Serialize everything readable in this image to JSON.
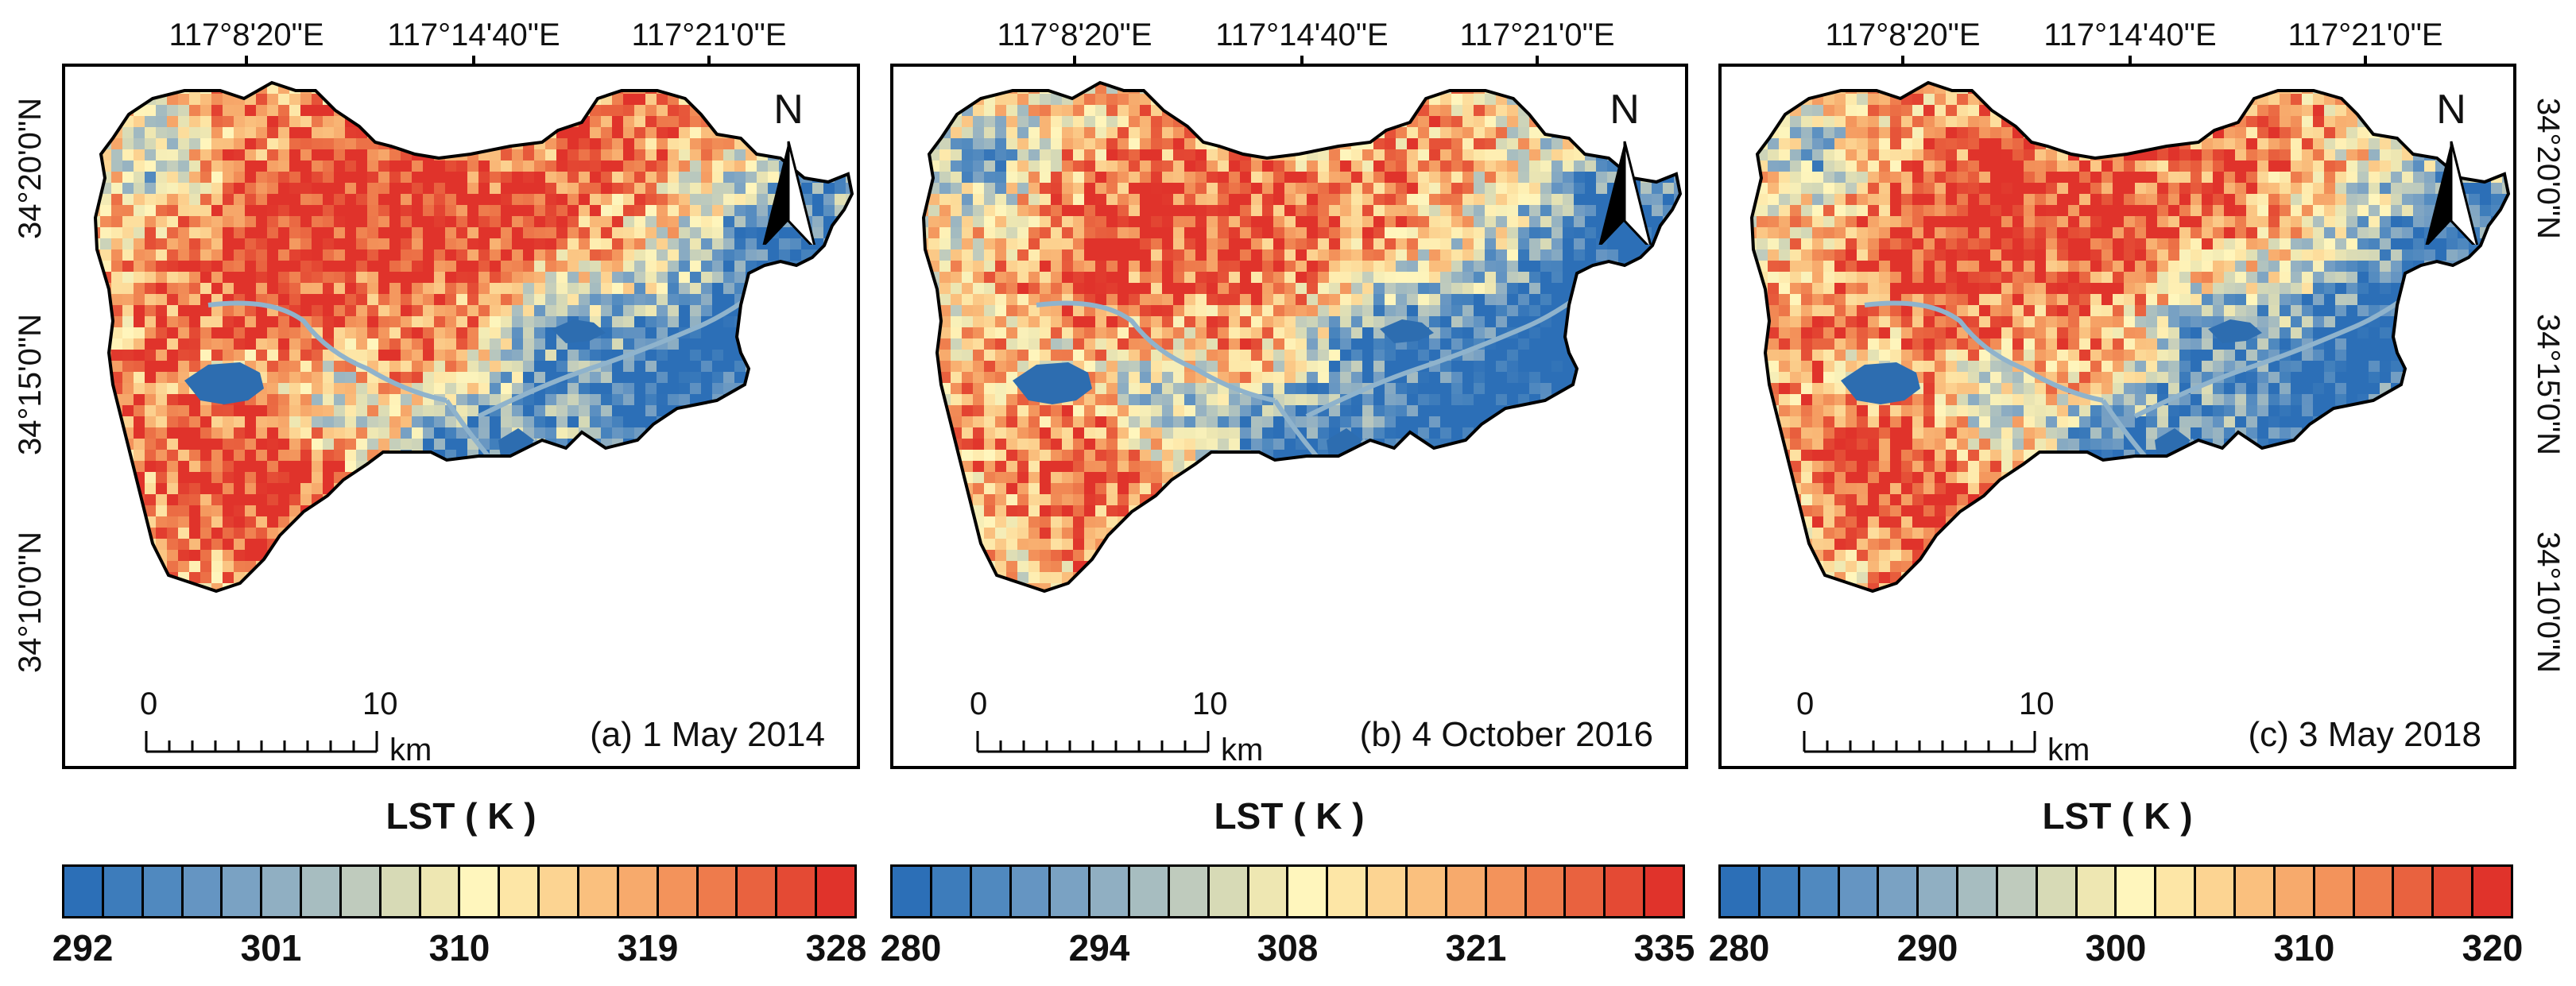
{
  "lon_labels": [
    "117°8'20\"E",
    "117°14'40\"E",
    "117°21'0\"E"
  ],
  "lat_labels": [
    "34°20'0\"N",
    "34°15'0\"N",
    "34°10'0\"N"
  ],
  "north_label": "N",
  "scale_bar": {
    "start": "0",
    "end": "10",
    "unit": "km"
  },
  "colors": {
    "low": "#2f6fb3",
    "mid": "#fff6bd",
    "high": "#e0332b",
    "water": "#2d6db0",
    "frame": "#000000"
  },
  "panels": [
    {
      "label": "(a) 1 May 2014",
      "legend_title": "LST ( K )",
      "ticks": [
        "292",
        "301",
        "310",
        "319",
        "328"
      ],
      "hot_bias": 0.62
    },
    {
      "label": "(b) 4 October 2016",
      "legend_title": "LST ( K )",
      "ticks": [
        "280",
        "294",
        "308",
        "321",
        "335"
      ],
      "hot_bias": 0.5
    },
    {
      "label": "(c) 3 May 2018",
      "legend_title": "LST ( K )",
      "ticks": [
        "280",
        "290",
        "300",
        "310",
        "320"
      ],
      "hot_bias": 0.58
    }
  ],
  "legend_colors": [
    "#2c6fb7",
    "#3d7cbb",
    "#5089bf",
    "#6595c2",
    "#7aa2c3",
    "#90afc2",
    "#a7bdc0",
    "#bfcbbd",
    "#d7dab6",
    "#eee7b2",
    "#fff6bd",
    "#fde6a6",
    "#fcd492",
    "#fac07e",
    "#f7aa6c",
    "#f3935b",
    "#ee7b4c",
    "#e9623f",
    "#e44a34",
    "#e0332b"
  ]
}
